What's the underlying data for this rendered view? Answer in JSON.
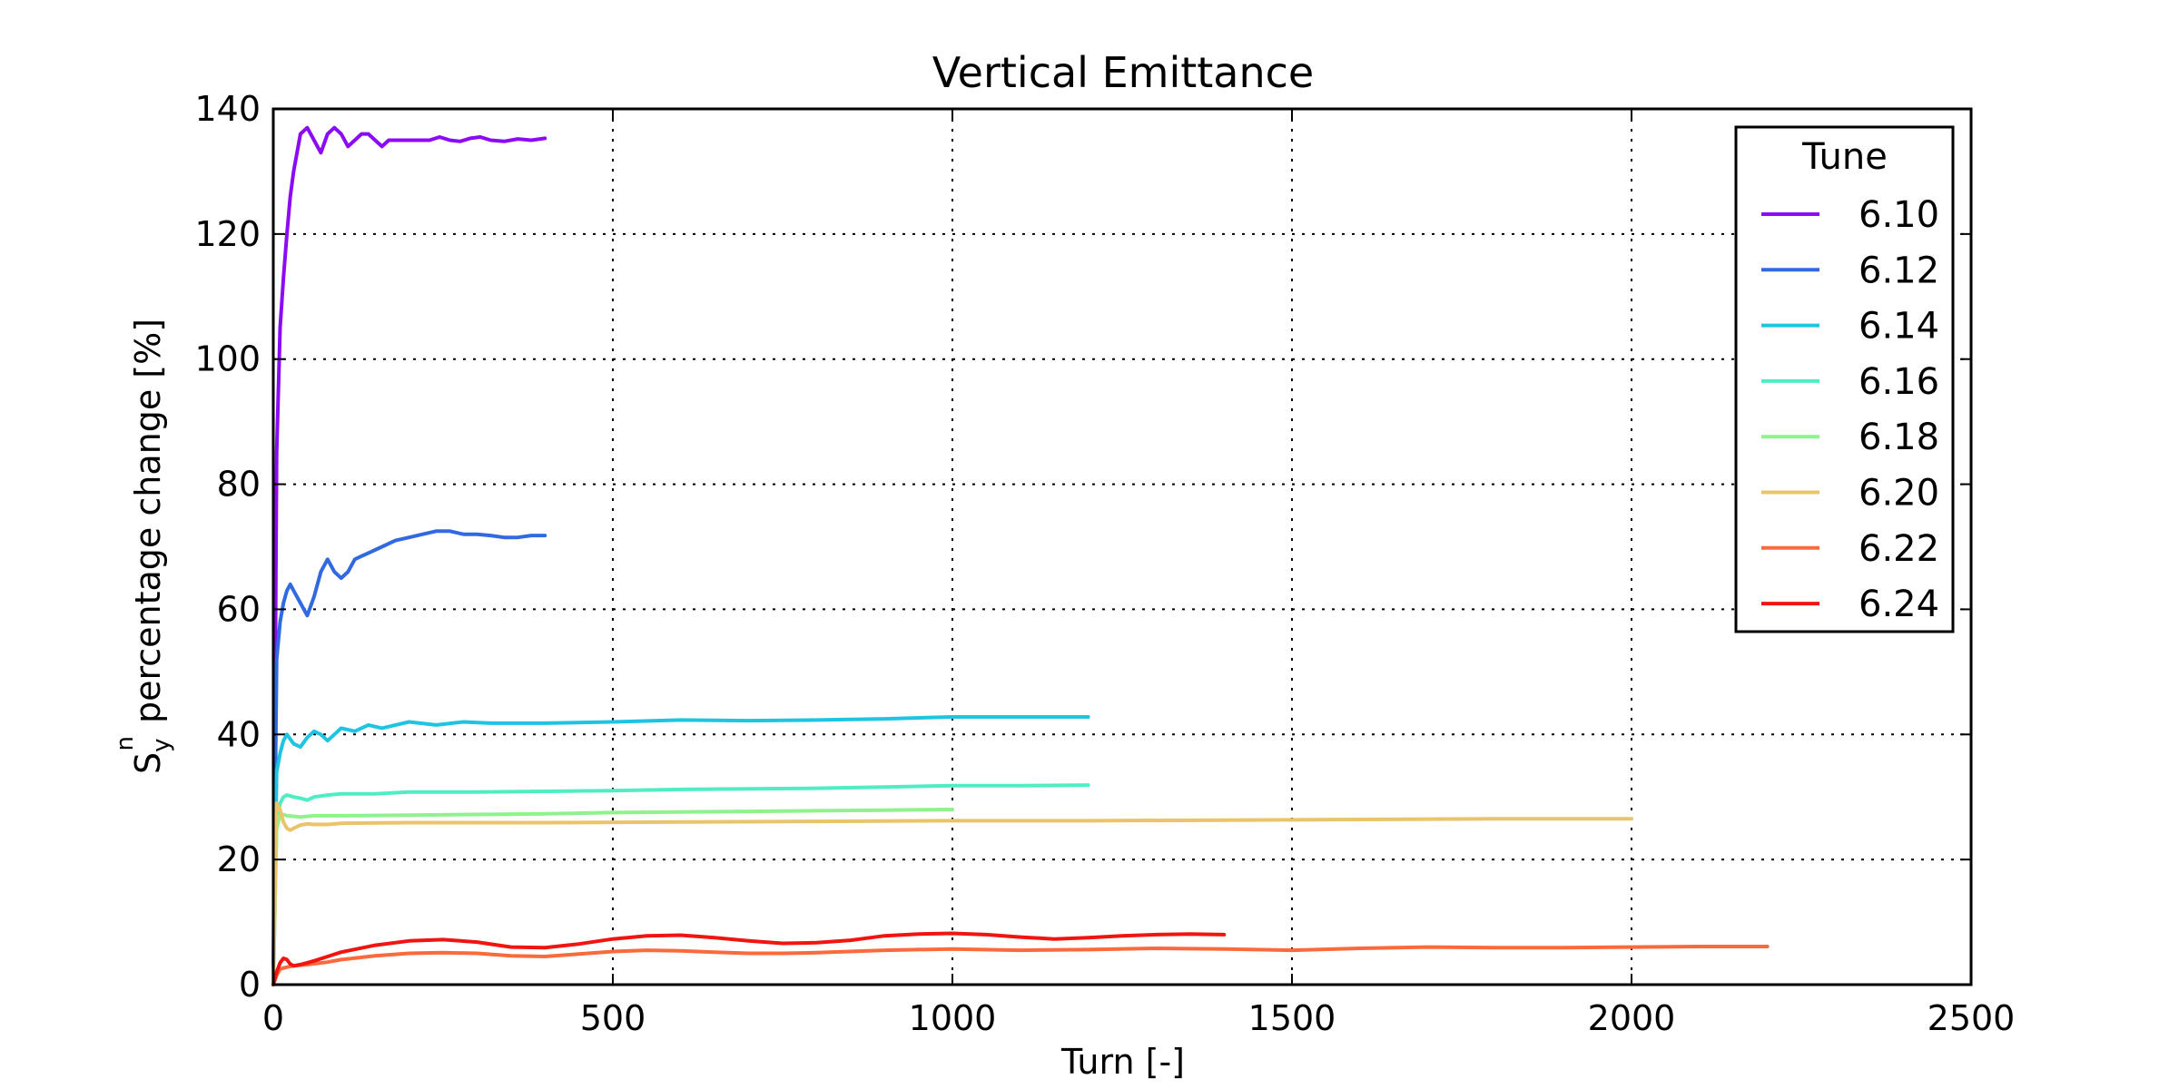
{
  "chart_data": {
    "type": "line",
    "title": "Vertical Emittance",
    "xlabel": "Turn [-]",
    "ylabel": "percentage change [%]",
    "ylabel_symbol": "S",
    "ylabel_sub": "y",
    "ylabel_sup": "n",
    "xlim": [
      0,
      2500
    ],
    "ylim": [
      0,
      140
    ],
    "xticks": [
      0,
      500,
      1000,
      1500,
      2000,
      2500
    ],
    "yticks": [
      0,
      20,
      40,
      60,
      80,
      100,
      120,
      140
    ],
    "grid": true,
    "legend": {
      "title": "Tune",
      "placement": "top-right"
    },
    "series": [
      {
        "name": "6.10",
        "color": "#8b0bf5",
        "x": [
          0,
          5,
          10,
          15,
          20,
          25,
          30,
          40,
          50,
          60,
          70,
          80,
          90,
          100,
          110,
          120,
          130,
          140,
          150,
          160,
          170,
          180,
          190,
          200,
          215,
          230,
          245,
          260,
          275,
          290,
          305,
          320,
          340,
          360,
          380,
          400
        ],
        "y": [
          0,
          85,
          105,
          113,
          120,
          126,
          130,
          136,
          137,
          135,
          133,
          136,
          137,
          136,
          134,
          135,
          136,
          136,
          135,
          134,
          135,
          135,
          135,
          135,
          135,
          135,
          135.5,
          135,
          134.8,
          135.3,
          135.5,
          135,
          134.8,
          135.2,
          135,
          135.3
        ]
      },
      {
        "name": "6.12",
        "color": "#3169e1",
        "x": [
          0,
          5,
          10,
          15,
          20,
          25,
          30,
          40,
          50,
          60,
          70,
          80,
          90,
          100,
          110,
          120,
          130,
          140,
          160,
          180,
          200,
          220,
          240,
          260,
          280,
          300,
          320,
          340,
          360,
          380,
          400
        ],
        "y": [
          0,
          52,
          58,
          61,
          63,
          64,
          63,
          61,
          59,
          62,
          66,
          68,
          66,
          65,
          66,
          68,
          68.5,
          69,
          70,
          71,
          71.5,
          72,
          72.5,
          72.5,
          72,
          72,
          71.8,
          71.5,
          71.5,
          71.8,
          71.8
        ]
      },
      {
        "name": "6.14",
        "color": "#1ec4e1",
        "x": [
          0,
          5,
          10,
          15,
          20,
          30,
          40,
          50,
          60,
          70,
          80,
          90,
          100,
          120,
          140,
          160,
          180,
          200,
          240,
          280,
          320,
          360,
          400,
          500,
          600,
          700,
          800,
          900,
          1000,
          1100,
          1200
        ],
        "y": [
          0,
          34,
          37,
          39,
          40,
          38.5,
          38,
          39.5,
          40.5,
          40,
          39,
          40,
          41,
          40.5,
          41.5,
          41,
          41.5,
          42,
          41.5,
          42,
          41.8,
          41.8,
          41.8,
          42,
          42.3,
          42.2,
          42.3,
          42.5,
          42.8,
          42.8,
          42.8
        ]
      },
      {
        "name": "6.16",
        "color": "#50ecc3",
        "x": [
          0,
          5,
          10,
          15,
          20,
          30,
          40,
          50,
          60,
          80,
          100,
          150,
          200,
          300,
          400,
          500,
          600,
          700,
          800,
          900,
          1000,
          1100,
          1200
        ],
        "y": [
          0,
          26,
          29,
          30,
          30.3,
          30,
          29.8,
          29.5,
          30,
          30.3,
          30.5,
          30.5,
          30.8,
          30.8,
          30.9,
          31,
          31.2,
          31.3,
          31.4,
          31.6,
          31.8,
          31.8,
          31.9
        ]
      },
      {
        "name": "6.18",
        "color": "#8ff28c",
        "x": [
          0,
          5,
          10,
          15,
          20,
          40,
          60,
          100,
          200,
          300,
          400,
          500,
          600,
          700,
          800,
          900,
          1000
        ],
        "y": [
          0,
          25,
          27,
          27.2,
          27,
          26.8,
          27,
          27,
          27.1,
          27.2,
          27.3,
          27.5,
          27.6,
          27.7,
          27.8,
          27.9,
          28
        ]
      },
      {
        "name": "6.20",
        "color": "#e9c46a",
        "x": [
          0,
          5,
          10,
          15,
          20,
          25,
          30,
          40,
          50,
          60,
          80,
          100,
          200,
          400,
          600,
          800,
          1000,
          1200,
          1400,
          1600,
          1800,
          2000
        ],
        "y": [
          0,
          29,
          28,
          26,
          25,
          24.7,
          25,
          25.5,
          25.7,
          25.6,
          25.6,
          25.8,
          25.9,
          25.9,
          26,
          26.1,
          26.2,
          26.2,
          26.3,
          26.4,
          26.5,
          26.5
        ]
      },
      {
        "name": "6.22",
        "color": "#fb6a3c",
        "x": [
          0,
          5,
          10,
          20,
          30,
          50,
          80,
          100,
          150,
          200,
          250,
          300,
          350,
          400,
          450,
          500,
          550,
          600,
          650,
          700,
          750,
          800,
          900,
          1000,
          1100,
          1200,
          1300,
          1400,
          1500,
          1600,
          1700,
          1800,
          1900,
          2000,
          2100,
          2200
        ],
        "y": [
          0,
          1.5,
          2.5,
          2.8,
          3,
          3.2,
          3.6,
          4,
          4.6,
          5,
          5.1,
          5,
          4.6,
          4.5,
          4.9,
          5.3,
          5.5,
          5.4,
          5.2,
          5.0,
          5.0,
          5.1,
          5.5,
          5.7,
          5.5,
          5.6,
          5.8,
          5.7,
          5.5,
          5.8,
          6,
          5.9,
          5.9,
          6,
          6.1,
          6.1
        ]
      },
      {
        "name": "6.24",
        "color": "#f01510",
        "x": [
          0,
          5,
          10,
          15,
          20,
          25,
          30,
          40,
          50,
          60,
          80,
          100,
          150,
          200,
          250,
          300,
          350,
          400,
          450,
          500,
          550,
          600,
          650,
          700,
          750,
          800,
          850,
          900,
          950,
          1000,
          1050,
          1100,
          1150,
          1200,
          1250,
          1300,
          1350,
          1400
        ],
        "y": [
          0,
          2,
          3.5,
          4.2,
          4,
          3.3,
          3,
          3.2,
          3.5,
          3.8,
          4.5,
          5.2,
          6.3,
          7.0,
          7.2,
          6.8,
          6.0,
          5.9,
          6.5,
          7.3,
          7.8,
          7.9,
          7.5,
          7.0,
          6.6,
          6.7,
          7.1,
          7.8,
          8.1,
          8.2,
          8.0,
          7.6,
          7.3,
          7.5,
          7.8,
          8.0,
          8.1,
          8.0
        ]
      }
    ]
  }
}
